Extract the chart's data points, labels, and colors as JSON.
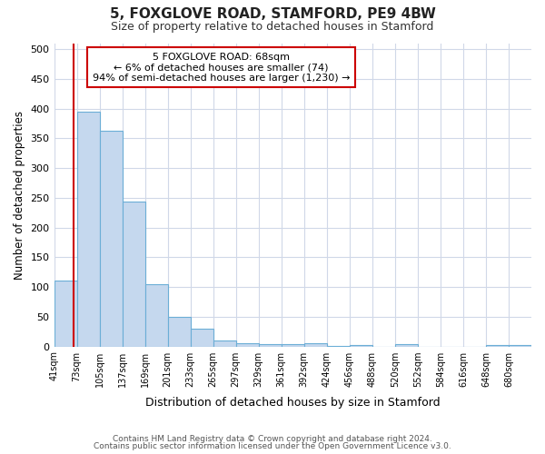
{
  "title1": "5, FOXGLOVE ROAD, STAMFORD, PE9 4BW",
  "title2": "Size of property relative to detached houses in Stamford",
  "xlabel": "Distribution of detached houses by size in Stamford",
  "ylabel": "Number of detached properties",
  "categories": [
    "41sqm",
    "73sqm",
    "105sqm",
    "137sqm",
    "169sqm",
    "201sqm",
    "233sqm",
    "265sqm",
    "297sqm",
    "329sqm",
    "361sqm",
    "392sqm",
    "424sqm",
    "456sqm",
    "488sqm",
    "520sqm",
    "552sqm",
    "584sqm",
    "616sqm",
    "648sqm",
    "680sqm"
  ],
  "values": [
    110,
    395,
    362,
    243,
    105,
    50,
    30,
    10,
    6,
    4,
    4,
    5,
    1,
    3,
    0,
    4,
    0,
    0,
    0,
    3,
    3
  ],
  "bar_color": "#c5d8ee",
  "bar_edge_color": "#6baed6",
  "ylim": [
    0,
    510
  ],
  "yticks": [
    0,
    50,
    100,
    150,
    200,
    250,
    300,
    350,
    400,
    450,
    500
  ],
  "property_line_color": "#cc0000",
  "annotation_line1": "5 FOXGLOVE ROAD: 68sqm",
  "annotation_line2": "← 6% of detached houses are smaller (74)",
  "annotation_line3": "94% of semi-detached houses are larger (1,230) →",
  "annotation_box_color": "#ffffff",
  "annotation_box_edge_color": "#cc0000",
  "footer1": "Contains HM Land Registry data © Crown copyright and database right 2024.",
  "footer2": "Contains public sector information licensed under the Open Government Licence v3.0.",
  "background_color": "#ffffff",
  "plot_background_color": "#ffffff",
  "grid_color": "#d0d8e8"
}
